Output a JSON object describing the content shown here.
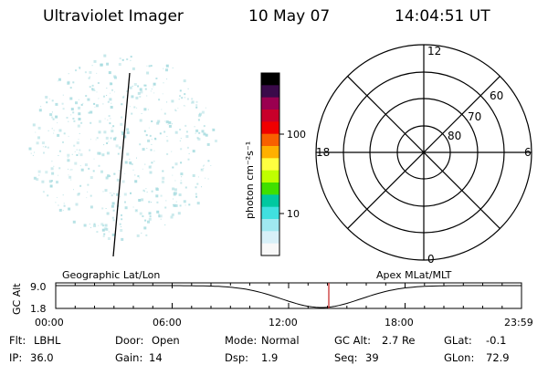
{
  "header": {
    "instrument": "Ultraviolet Imager",
    "date": "10 May 07",
    "time": "14:04:51 UT"
  },
  "colorbar": {
    "unit_label": "photon cm⁻²s⁻¹",
    "tick_labels": [
      "100",
      "10"
    ],
    "colors": [
      "#000000",
      "#3a0a4a",
      "#9a0050",
      "#c8002a",
      "#f00000",
      "#f86000",
      "#ffb000",
      "#ffff40",
      "#c0ff00",
      "#40e000",
      "#00c8a0",
      "#40e0e0",
      "#a0e8f0",
      "#d8f0f8",
      "#f8f8f8"
    ]
  },
  "polar": {
    "clock_labels": {
      "top": "12",
      "bottom": "0",
      "left": "18",
      "right": "6"
    },
    "lat_labels": [
      "60",
      "70",
      "80"
    ]
  },
  "timeline": {
    "left_caption": "Geographic Lat/Lon",
    "right_caption": "Apex MLat/MLT",
    "y_axis_title": "GC Alt",
    "y_ticks": [
      "9.0",
      "1.8"
    ],
    "x_ticks": [
      "00:00",
      "06:00",
      "12:00",
      "18:00",
      "23:59"
    ],
    "marker_color": "#c83030"
  },
  "footer": {
    "row1": [
      {
        "key": "Flt:",
        "value": "LBHL"
      },
      {
        "key": "Door:",
        "value": "Open"
      },
      {
        "key": "Mode:",
        "value": "Normal"
      },
      {
        "key": "GC Alt:",
        "value": "2.7 Re"
      },
      {
        "key": "GLat:",
        "value": "-0.1"
      }
    ],
    "row2": [
      {
        "key": "IP:",
        "value": "36.0"
      },
      {
        "key": "Gain:",
        "value": "14"
      },
      {
        "key": "Dsp:",
        "value": "1.9"
      },
      {
        "key": "Seq:",
        "value": "39"
      },
      {
        "key": "GLon:",
        "value": "72.9"
      }
    ]
  },
  "image_pixel_color": "#a8dce0"
}
